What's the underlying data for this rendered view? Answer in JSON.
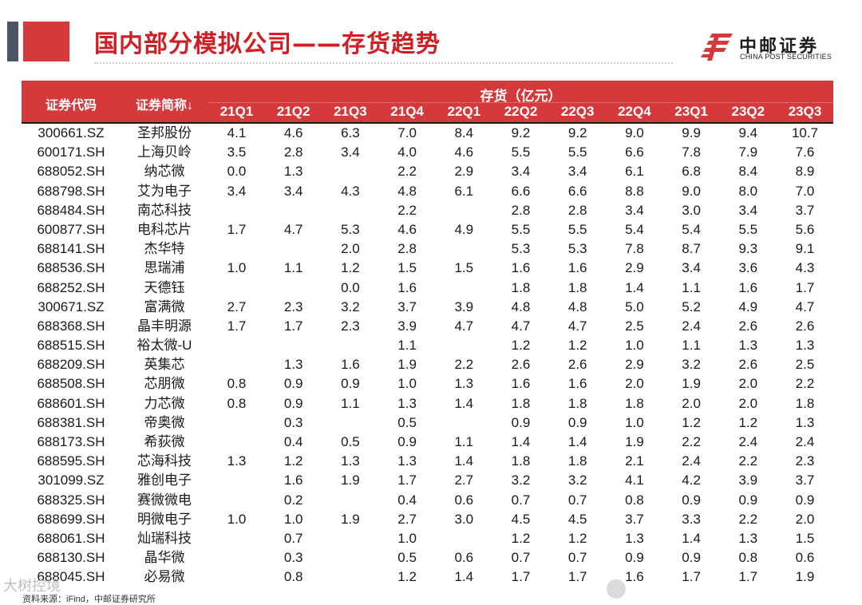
{
  "header": {
    "title": "国内部分模拟公司——存货趋势",
    "brand_cn": "中邮证券",
    "brand_en": "CHINA POST SECURITIES",
    "accent_color": "#d5393b",
    "title_color": "#d01f24"
  },
  "table": {
    "col_code": "证券代码",
    "col_name": "证券简称↓",
    "group_label": "存货（亿元）",
    "quarters": [
      "21Q1",
      "21Q2",
      "21Q3",
      "21Q4",
      "22Q1",
      "22Q2",
      "22Q3",
      "22Q4",
      "23Q1",
      "23Q2",
      "23Q3"
    ],
    "rows": [
      {
        "code": "300661.SZ",
        "name": "圣邦股份",
        "v": [
          "4.1",
          "4.6",
          "6.3",
          "7.0",
          "8.4",
          "9.2",
          "9.2",
          "9.0",
          "9.9",
          "9.4",
          "10.7"
        ]
      },
      {
        "code": "600171.SH",
        "name": "上海贝岭",
        "v": [
          "3.5",
          "2.8",
          "3.4",
          "4.0",
          "4.6",
          "5.5",
          "5.5",
          "6.6",
          "7.8",
          "7.9",
          "7.6"
        ]
      },
      {
        "code": "688052.SH",
        "name": "纳芯微",
        "v": [
          "0.0",
          "1.3",
          "",
          "2.2",
          "2.9",
          "3.4",
          "3.4",
          "6.1",
          "6.8",
          "8.4",
          "8.9"
        ]
      },
      {
        "code": "688798.SH",
        "name": "艾为电子",
        "v": [
          "3.4",
          "3.4",
          "4.3",
          "4.8",
          "6.1",
          "6.6",
          "6.6",
          "8.8",
          "9.0",
          "8.0",
          "7.0"
        ]
      },
      {
        "code": "688484.SH",
        "name": "南芯科技",
        "v": [
          "",
          "",
          "",
          "2.2",
          "",
          "2.8",
          "2.8",
          "3.4",
          "3.0",
          "3.4",
          "3.7"
        ]
      },
      {
        "code": "600877.SH",
        "name": "电科芯片",
        "v": [
          "1.7",
          "4.7",
          "5.3",
          "4.6",
          "4.9",
          "5.5",
          "5.5",
          "5.4",
          "5.4",
          "5.5",
          "5.6"
        ]
      },
      {
        "code": "688141.SH",
        "name": "杰华特",
        "v": [
          "",
          "",
          "2.0",
          "2.8",
          "",
          "5.3",
          "5.3",
          "7.8",
          "8.7",
          "9.3",
          "9.1"
        ]
      },
      {
        "code": "688536.SH",
        "name": "思瑞浦",
        "v": [
          "1.0",
          "1.1",
          "1.2",
          "1.5",
          "1.5",
          "1.6",
          "1.6",
          "2.9",
          "3.4",
          "3.6",
          "4.3"
        ]
      },
      {
        "code": "688252.SH",
        "name": "天德钰",
        "v": [
          "",
          "",
          "0.0",
          "1.6",
          "",
          "1.8",
          "1.8",
          "1.4",
          "1.1",
          "1.6",
          "1.7"
        ]
      },
      {
        "code": "300671.SZ",
        "name": "富满微",
        "v": [
          "2.7",
          "2.3",
          "3.2",
          "3.7",
          "3.9",
          "4.8",
          "4.8",
          "5.0",
          "5.2",
          "4.9",
          "4.7"
        ]
      },
      {
        "code": "688368.SH",
        "name": "晶丰明源",
        "v": [
          "1.7",
          "1.7",
          "2.3",
          "3.9",
          "4.7",
          "4.7",
          "4.7",
          "2.5",
          "2.4",
          "2.6",
          "2.6"
        ]
      },
      {
        "code": "688515.SH",
        "name": "裕太微-U",
        "v": [
          "",
          "",
          "",
          "1.1",
          "",
          "1.2",
          "1.2",
          "1.0",
          "1.1",
          "1.3",
          "1.3"
        ]
      },
      {
        "code": "688209.SH",
        "name": "英集芯",
        "v": [
          "",
          "1.3",
          "1.6",
          "1.9",
          "2.2",
          "2.6",
          "2.6",
          "2.9",
          "3.2",
          "2.6",
          "2.5"
        ]
      },
      {
        "code": "688508.SH",
        "name": "芯朋微",
        "v": [
          "0.8",
          "0.9",
          "0.9",
          "1.0",
          "1.3",
          "1.6",
          "1.6",
          "2.0",
          "1.9",
          "2.0",
          "2.2"
        ]
      },
      {
        "code": "688601.SH",
        "name": "力芯微",
        "v": [
          "0.8",
          "0.9",
          "1.1",
          "1.3",
          "1.4",
          "1.8",
          "1.8",
          "1.8",
          "2.0",
          "2.0",
          "1.8"
        ]
      },
      {
        "code": "688381.SH",
        "name": "帝奥微",
        "v": [
          "",
          "0.3",
          "",
          "0.5",
          "",
          "0.9",
          "0.9",
          "1.0",
          "1.2",
          "1.2",
          "1.3"
        ]
      },
      {
        "code": "688173.SH",
        "name": "希荻微",
        "v": [
          "",
          "0.4",
          "0.5",
          "0.9",
          "1.1",
          "1.4",
          "1.4",
          "1.9",
          "2.2",
          "2.4",
          "2.4"
        ]
      },
      {
        "code": "688595.SH",
        "name": "芯海科技",
        "v": [
          "1.3",
          "1.2",
          "1.3",
          "1.3",
          "1.4",
          "1.8",
          "1.8",
          "2.1",
          "2.4",
          "2.2",
          "2.3"
        ]
      },
      {
        "code": "301099.SZ",
        "name": "雅创电子",
        "v": [
          "",
          "1.6",
          "1.9",
          "1.7",
          "2.7",
          "3.2",
          "3.2",
          "4.1",
          "4.2",
          "3.9",
          "3.7"
        ]
      },
      {
        "code": "688325.SH",
        "name": "赛微微电",
        "v": [
          "",
          "0.2",
          "",
          "0.4",
          "0.6",
          "0.7",
          "0.7",
          "0.8",
          "0.9",
          "0.9",
          "0.9"
        ]
      },
      {
        "code": "688699.SH",
        "name": "明微电子",
        "v": [
          "1.0",
          "1.0",
          "1.9",
          "2.7",
          "3.0",
          "4.5",
          "4.5",
          "3.7",
          "3.3",
          "2.2",
          "2.0"
        ]
      },
      {
        "code": "688061.SH",
        "name": "灿瑞科技",
        "v": [
          "",
          "0.7",
          "",
          "1.0",
          "",
          "1.2",
          "1.2",
          "1.3",
          "1.4",
          "1.3",
          "1.5"
        ]
      },
      {
        "code": "688130.SH",
        "name": "晶华微",
        "v": [
          "",
          "0.3",
          "",
          "0.5",
          "0.6",
          "0.7",
          "0.7",
          "0.9",
          "0.9",
          "0.8",
          "0.6"
        ]
      },
      {
        "code": "688045.SH",
        "name": "必易微",
        "v": [
          "",
          "0.8",
          "",
          "1.2",
          "1.4",
          "1.7",
          "1.7",
          "1.6",
          "1.7",
          "1.7",
          "1.9"
        ]
      }
    ]
  },
  "footer": {
    "source": "资料来源：iFind，中邮证券研究所",
    "watermark": "大树控境"
  }
}
